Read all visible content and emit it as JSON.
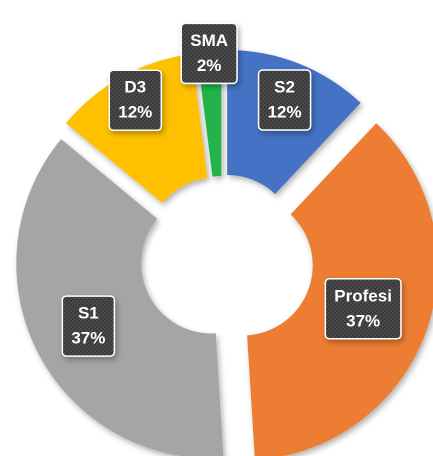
{
  "chart_data": {
    "type": "doughnut",
    "categories": [
      "S2",
      "Profesi",
      "S1",
      "D3",
      "SMA"
    ],
    "values": [
      12,
      37,
      37,
      12,
      2
    ],
    "value_labels": [
      "12%",
      "37%",
      "37%",
      "12%",
      "2%"
    ],
    "colors": [
      "#4472c4",
      "#ed7d31",
      "#a5a5a5",
      "#ffc000",
      "#21b34a"
    ]
  }
}
